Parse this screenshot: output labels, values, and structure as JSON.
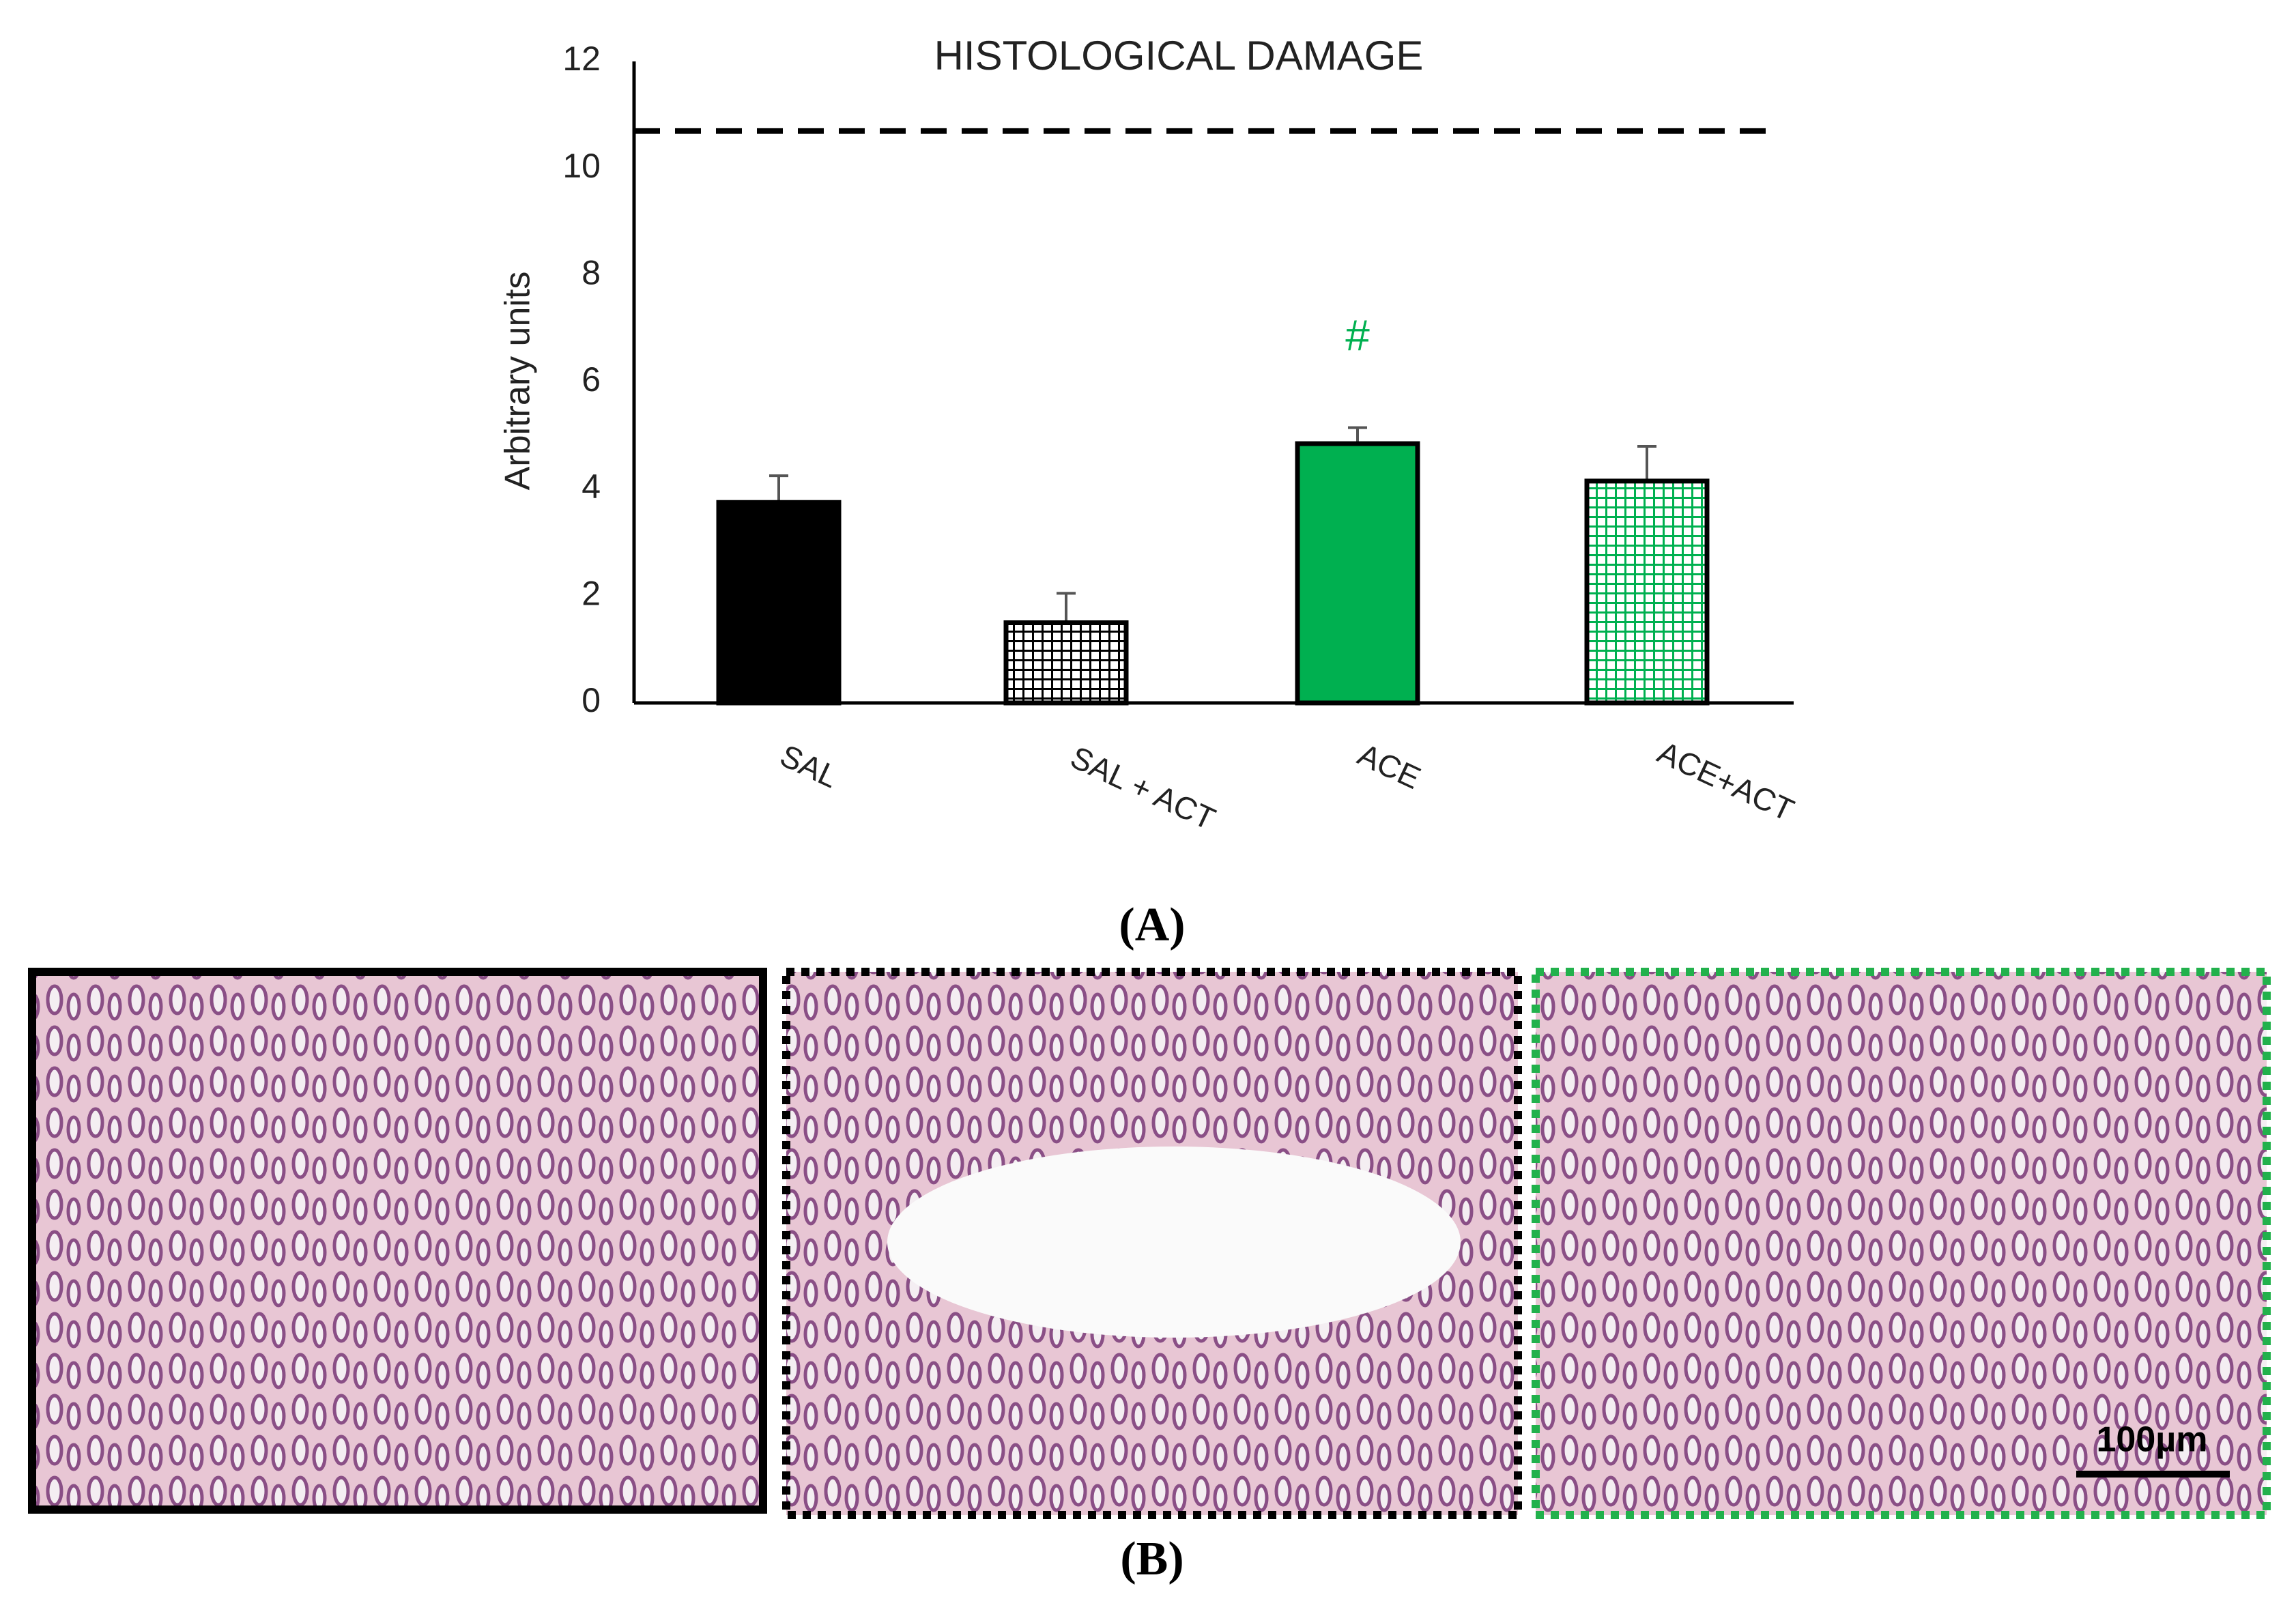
{
  "chart_data": {
    "type": "bar",
    "title": "HISTOLOGICAL DAMAGE",
    "ylabel": "Arbitrary units",
    "categories": [
      "SAL",
      "SAL + ACT",
      "ACE",
      "ACE+ACT"
    ],
    "values": [
      3.75,
      1.5,
      4.85,
      4.15
    ],
    "errors": [
      0.5,
      0.55,
      0.3,
      0.65
    ],
    "colors": [
      "#000000",
      "#000000",
      "#00b050",
      "#00b050"
    ],
    "patterns": [
      "solid",
      "grid",
      "solid",
      "grid"
    ],
    "reference_line": 10.7,
    "annotations": [
      {
        "category": 2,
        "text": "#",
        "color": "#00b050"
      }
    ],
    "ylim": [
      0,
      12
    ],
    "yticks": [
      0,
      2,
      4,
      6,
      8,
      10,
      12
    ],
    "grid": false
  },
  "panel_labels": [
    "(A)",
    "(B)"
  ],
  "scale_bar": "100µm"
}
